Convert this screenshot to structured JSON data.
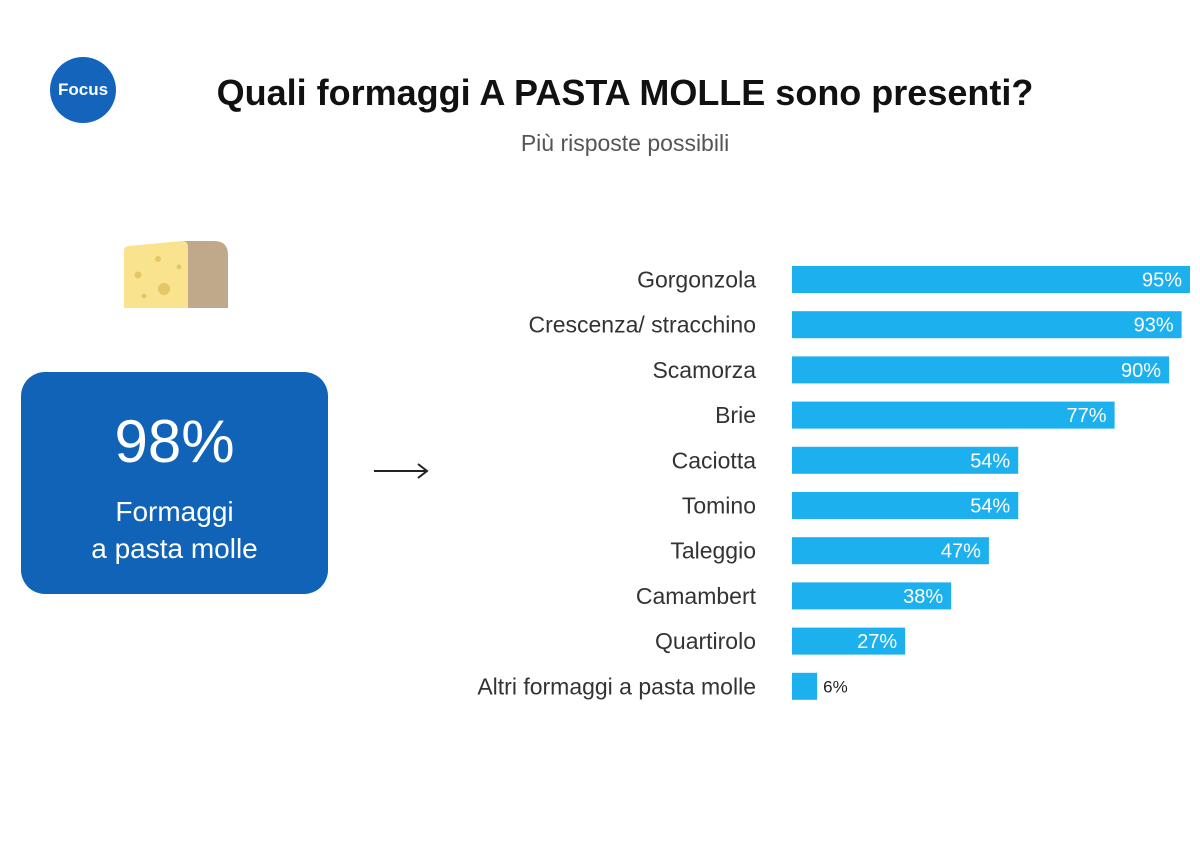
{
  "header": {
    "badge": "Focus",
    "title": "Quali formaggi A PASTA MOLLE sono presenti?",
    "subtitle": "Più risposte possibili"
  },
  "summary": {
    "value": "98%",
    "label_line1": "Formaggi",
    "label_line2": "a pasta molle"
  },
  "colors": {
    "bar": "#1cb0ef",
    "card": "#1163b8",
    "badge": "#1464bc",
    "label_inside": "#ffffff",
    "label_outside": "#222222"
  },
  "icons": {
    "illustration": "cheese-wedge-icon",
    "pointer": "arrow-right-icon"
  },
  "chart_data": {
    "type": "bar",
    "orientation": "horizontal",
    "categories": [
      "Gorgonzola",
      "Crescenza/ stracchino",
      "Scamorza",
      "Brie",
      "Caciotta",
      "Tomino",
      "Taleggio",
      "Camambert",
      "Quartirolo",
      "Altri formaggi a pasta molle"
    ],
    "values": [
      95,
      93,
      90,
      77,
      54,
      54,
      47,
      38,
      27,
      6
    ],
    "value_labels": [
      "95%",
      "93%",
      "90%",
      "77%",
      "54%",
      "54%",
      "47%",
      "38%",
      "27%",
      "6%"
    ],
    "unit": "%",
    "xlim": [
      0,
      95
    ],
    "grid": false
  }
}
